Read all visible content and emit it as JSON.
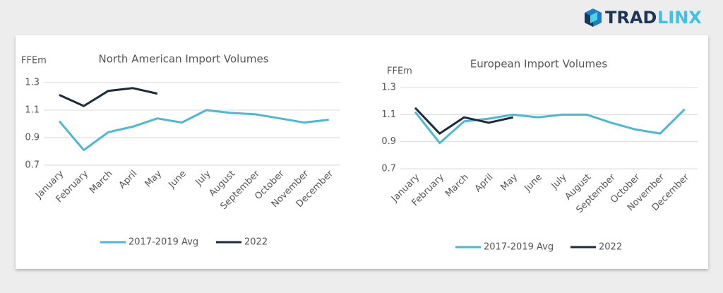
{
  "logo": [
    "TRAD",
    "LINX"
  ],
  "chart_data": [
    {
      "type": "line",
      "title": "North American Import Volumes",
      "y_label": "FFEm",
      "categories": [
        "January",
        "February",
        "March",
        "April",
        "May",
        "June",
        "July",
        "August",
        "September",
        "October",
        "November",
        "December"
      ],
      "series": [
        {
          "name": "2017-2019 Avg",
          "color": "#4db8d4",
          "values": [
            1.02,
            0.81,
            0.94,
            0.98,
            1.04,
            1.01,
            1.1,
            1.08,
            1.07,
            1.04,
            1.01,
            1.03
          ]
        },
        {
          "name": "2022",
          "color": "#1c2b3a",
          "values": [
            1.21,
            1.13,
            1.24,
            1.26,
            1.22,
            null,
            null,
            null,
            null,
            null,
            null,
            null
          ]
        }
      ],
      "ylim": [
        0.7,
        1.3
      ],
      "yticks": [
        0.7,
        0.9,
        1.1,
        1.3
      ],
      "grid": true,
      "legend": "bottom"
    },
    {
      "type": "line",
      "title": "European Import Volumes",
      "y_label": "FFEm",
      "categories": [
        "January",
        "February",
        "March",
        "April",
        "May",
        "June",
        "July",
        "August",
        "September",
        "October",
        "November",
        "December"
      ],
      "series": [
        {
          "name": "2017-2019 Avg",
          "color": "#4db8d4",
          "values": [
            1.12,
            0.89,
            1.05,
            1.07,
            1.1,
            1.08,
            1.1,
            1.1,
            1.04,
            0.99,
            0.96,
            1.14
          ]
        },
        {
          "name": "2022",
          "color": "#1c2b3a",
          "values": [
            1.15,
            0.96,
            1.08,
            1.04,
            1.08,
            null,
            null,
            null,
            null,
            null,
            null,
            null
          ]
        }
      ],
      "ylim": [
        0.7,
        1.3
      ],
      "yticks": [
        0.7,
        0.9,
        1.1,
        1.3
      ],
      "grid": true,
      "legend": "bottom"
    }
  ]
}
